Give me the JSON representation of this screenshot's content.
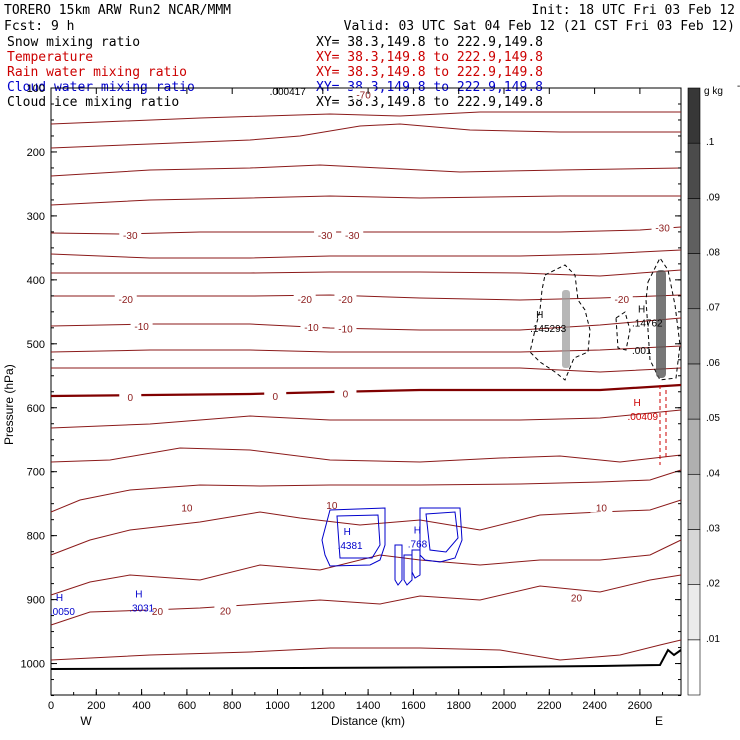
{
  "header": {
    "model": "TORERO  15km ARW   Run2    NCAR/MMM",
    "init": "Init: 18 UTC Fri 03 Feb 12",
    "fcst": "Fcst:     9 h",
    "valid": "Valid: 03 UTC Sat 04 Feb 12 (21 CST Fri 03 Feb 12)"
  },
  "fields": [
    {
      "name": "Snow mixing ratio",
      "xy": "XY=  38.3,149.8 to 222.9,149.8",
      "color": "#000000"
    },
    {
      "name": "Temperature",
      "xy": "XY=  38.3,149.8 to 222.9,149.8",
      "color": "#cc0000"
    },
    {
      "name": "Rain water mixing ratio",
      "xy": "XY=  38.3,149.8 to 222.9,149.8",
      "color": "#cc0000"
    },
    {
      "name": "Cloud water mixing ratio",
      "xy": "XY=  38.3,149.8 to 222.9,149.8",
      "color": "#0000cc"
    },
    {
      "name": "Cloud ice mixing ratio",
      "xy": "XY=  38.3,149.8 to 222.9,149.8",
      "color": "#000000"
    }
  ],
  "chart_data": {
    "type": "cross-section",
    "xlabel": "Distance (km)",
    "ylabel": "Pressure (hPa)",
    "x_ticks": [
      0,
      200,
      400,
      600,
      800,
      1000,
      1200,
      1400,
      1600,
      1800,
      2000,
      2200,
      2400,
      2600
    ],
    "x_tick_labels": [
      "0",
      "200",
      "400",
      "600",
      "800",
      "1000",
      "1200",
      "1400",
      "1600",
      "1800",
      "2000",
      "2200",
      "2400",
      "2600"
    ],
    "y_ticks": [
      100,
      200,
      300,
      400,
      500,
      600,
      700,
      800,
      900,
      1000
    ],
    "y_tick_labels": [
      "100",
      "200",
      "300",
      "400",
      "500",
      "600",
      "700",
      "800",
      "900",
      "1000"
    ],
    "xlim": [
      0,
      2780
    ],
    "ylim": [
      1050,
      100
    ],
    "end_labels": {
      "left": "W",
      "right": "E"
    },
    "temperature_isotherms": [
      {
        "label": "-70",
        "label_x": [
          1380
        ],
        "label_p": [
          110
        ]
      },
      {
        "label": "-30",
        "label_x": [
          350,
          1210,
          1330,
          2700
        ],
        "label_p": [
          330,
          330,
          330,
          318
        ]
      },
      {
        "label": "-20",
        "label_x": [
          330,
          1120,
          1300,
          2520
        ],
        "label_p": [
          430,
          430,
          430,
          430
        ]
      },
      {
        "label": "-10",
        "label_x": [
          400,
          1150,
          1300
        ],
        "label_p": [
          472,
          474,
          476
        ]
      },
      {
        "label": "0",
        "label_x": [
          350,
          990,
          1300
        ],
        "label_p": [
          583,
          582,
          578
        ]
      },
      {
        "label": "10",
        "label_x": [
          600,
          1240,
          2430
        ],
        "label_p": [
          756,
          752,
          756
        ]
      },
      {
        "label": "20",
        "label_x": [
          470,
          770,
          2320
        ],
        "label_p": [
          918,
          917,
          897
        ]
      }
    ],
    "maxima": [
      {
        "field": "Cloud water mixing ratio",
        "label": "H",
        "value": ".0050",
        "x": 110,
        "p": 918
      },
      {
        "field": "Cloud water mixing ratio",
        "label": "H",
        "value": ".3031",
        "x": 460,
        "p": 912
      },
      {
        "field": "Cloud water mixing ratio",
        "label": "H",
        "value": ".4381",
        "x": 1380,
        "p": 815
      },
      {
        "field": "Cloud water mixing ratio",
        "label": "H",
        "value": ".768",
        "x": 1690,
        "p": 812
      },
      {
        "field": "Snow mixing ratio",
        "label": "H",
        "value": ".145293",
        "x": 2230,
        "p": 475
      },
      {
        "field": "Snow mixing ratio",
        "label": "H",
        "value": ".14762",
        "x": 2680,
        "p": 467
      },
      {
        "field": "Cloud ice mixing ratio",
        "label": "",
        "value": ".001",
        "x": 2680,
        "p": 510
      },
      {
        "field": "Rain water mixing ratio",
        "label": "H",
        "value": ".00409",
        "x": 2660,
        "p": 613
      },
      {
        "field": "Cloud ice mixing ratio",
        "label": "",
        "value": ".000417",
        "x": 1080,
        "p": 105
      }
    ],
    "colorbar": {
      "unit": "g kg",
      "unit_exp": "-1",
      "ticks": [
        0.01,
        0.02,
        0.03,
        0.04,
        0.05,
        0.06,
        0.07,
        0.08,
        0.09,
        0.1
      ],
      "tick_labels": [
        ".01",
        ".02",
        ".03",
        ".04",
        ".05",
        ".06",
        ".07",
        ".08",
        ".09",
        ".1"
      ]
    },
    "colors": {
      "temperature": "#8b1a1a",
      "freezing_level": "#800000",
      "cloud_water": "#0000cc",
      "rain": "#cc0000",
      "snow": "#000000",
      "terrain": "#000000"
    }
  }
}
